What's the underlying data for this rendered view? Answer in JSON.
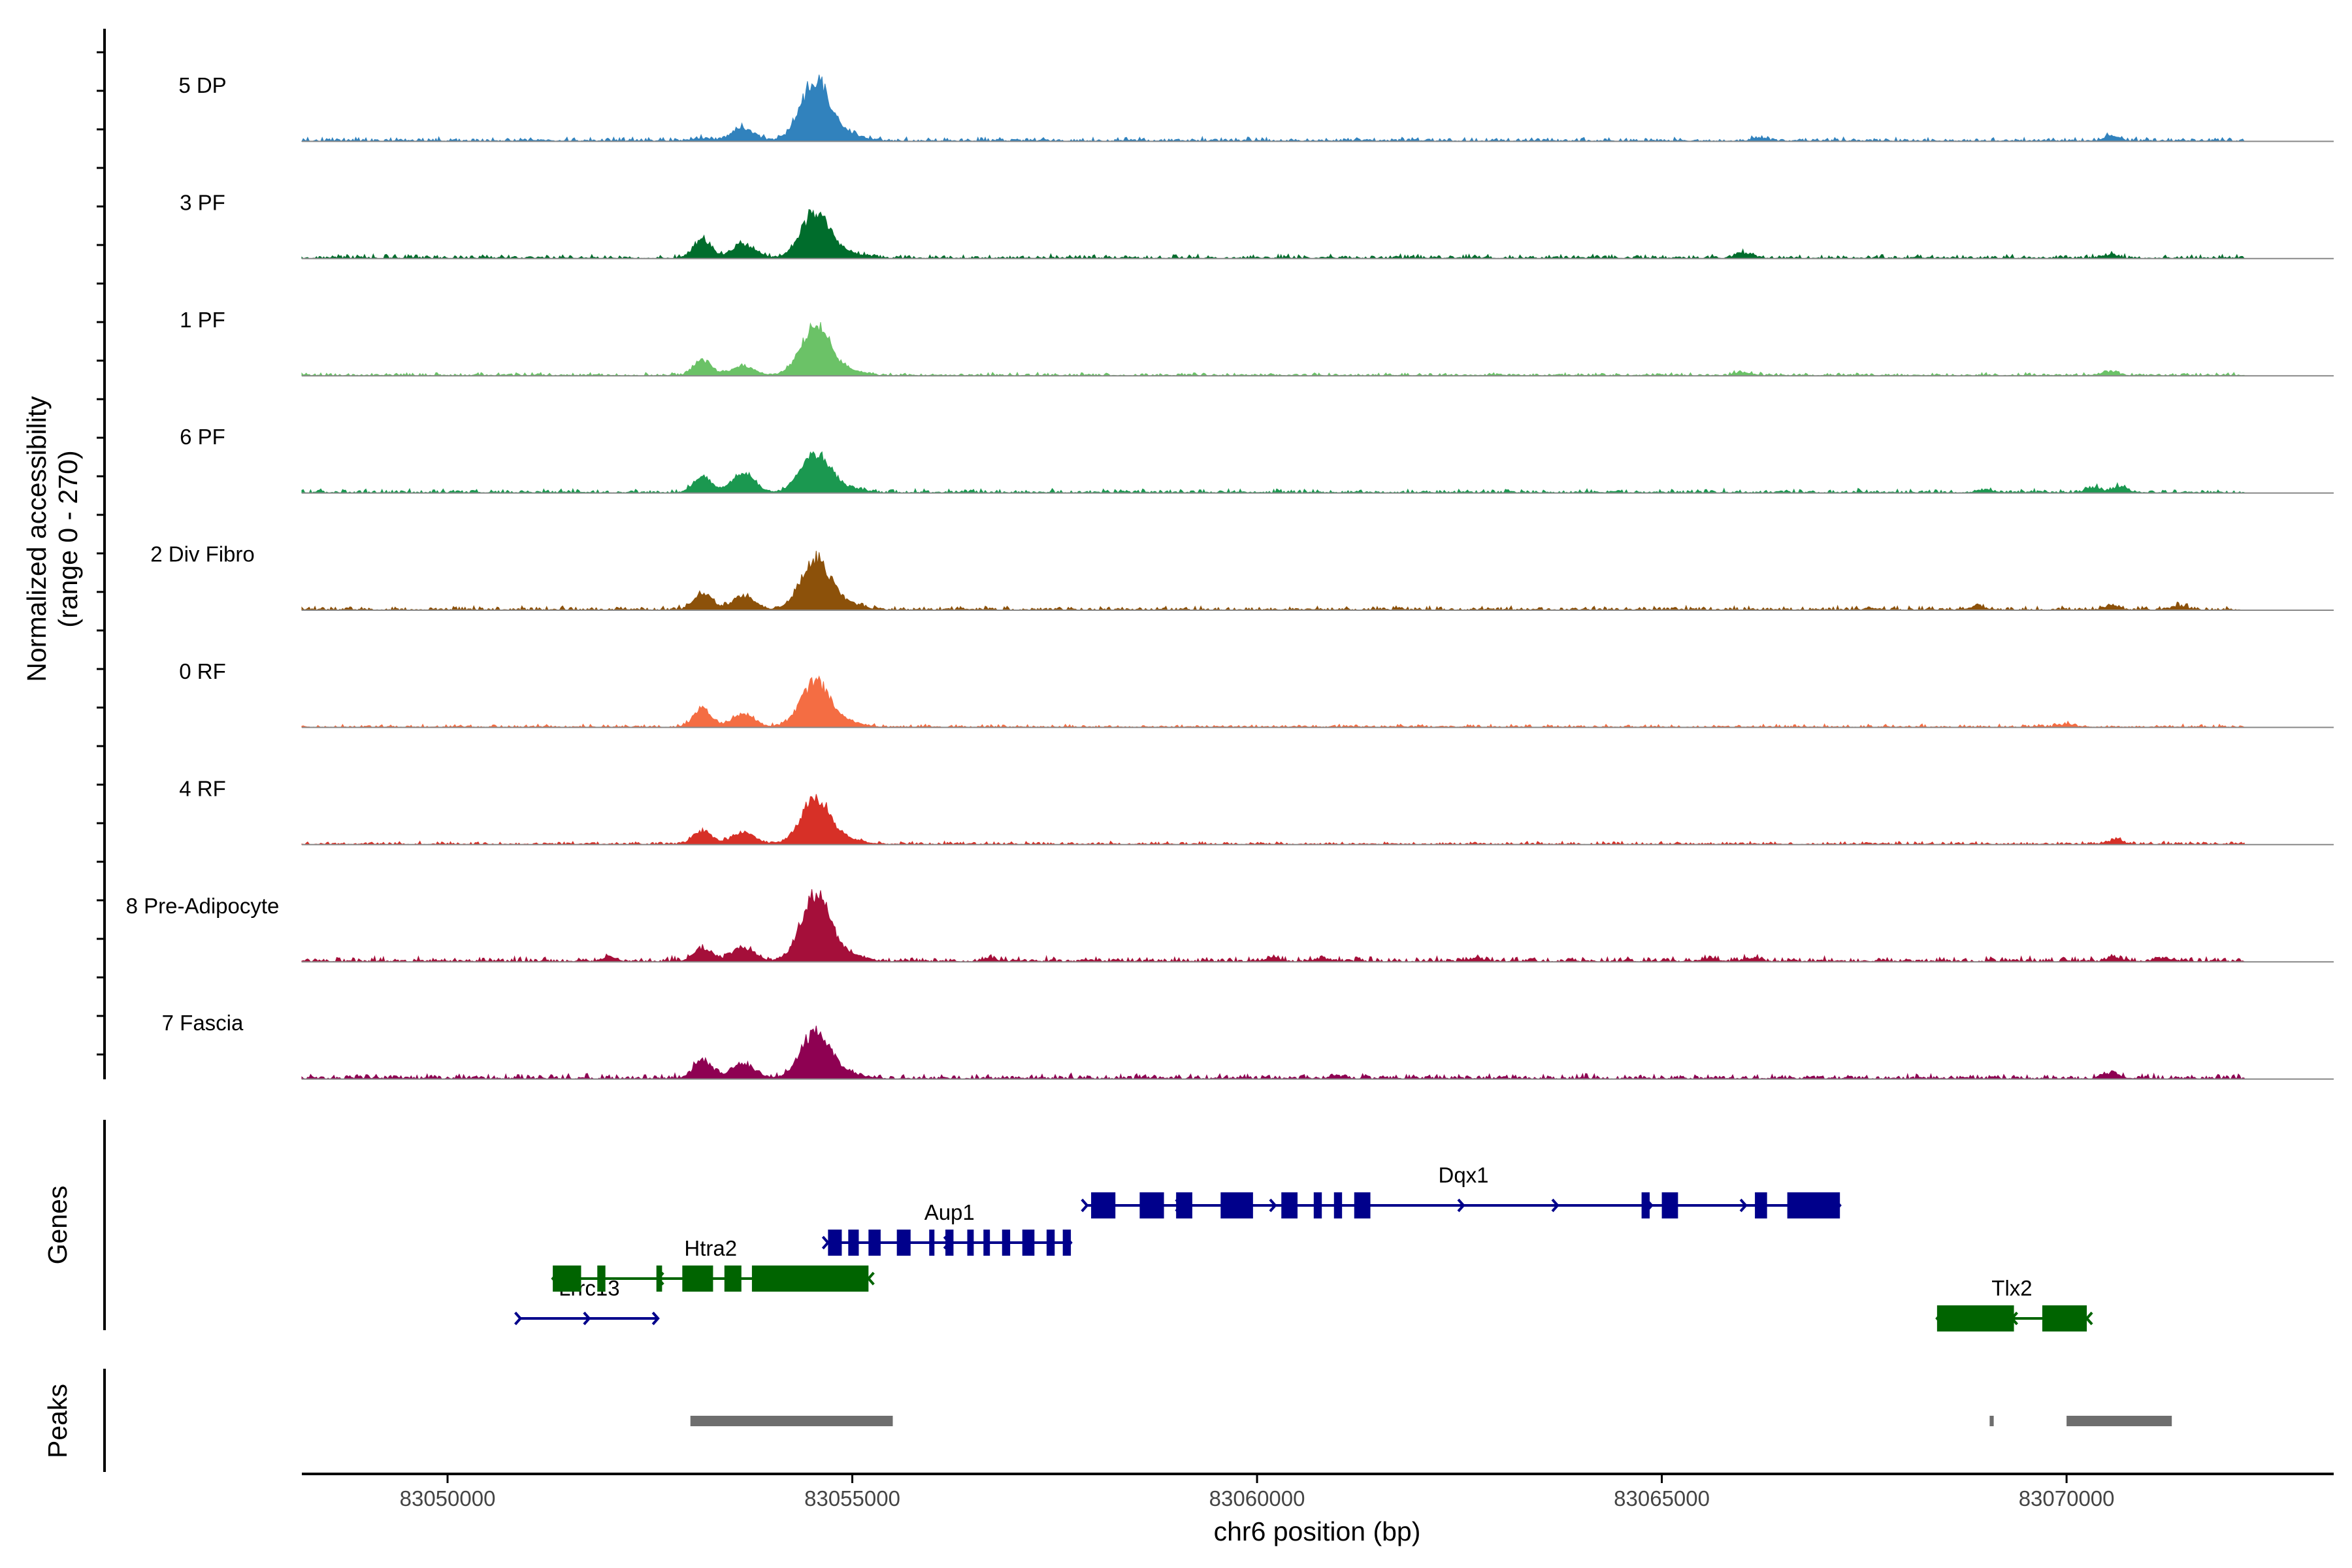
{
  "chart_data": {
    "type": "area",
    "title": "",
    "x_range": [
      83048200,
      83073300
    ],
    "y_range": [
      0,
      270
    ],
    "ylabel_line1": "Normalized accessibility",
    "ylabel_line2": "(range 0 - 270)",
    "xlabel": "chr6 position (bp)",
    "x_ticks": [
      83050000,
      83055000,
      83060000,
      83065000,
      83070000
    ],
    "x_tick_labels": [
      "83050000",
      "83055000",
      "83060000",
      "83065000",
      "83070000"
    ],
    "genes_label": "Genes",
    "peaks_label": "Peaks",
    "peak_profile": [
      {
        "pos": 83053150,
        "width": 110
      },
      {
        "pos": 83053650,
        "width": 140
      },
      {
        "pos": 83054550,
        "width": 180
      }
    ],
    "tracks": [
      {
        "name": "5 DP",
        "color": "#3182bd",
        "heights": [
          8,
          40,
          200
        ],
        "bg": 8,
        "secondary": [
          {
            "pos": 83066200,
            "h": 10
          },
          {
            "pos": 83070550,
            "h": 15
          }
        ]
      },
      {
        "name": "3 PF",
        "color": "#006d2c",
        "heights": [
          60,
          45,
          150
        ],
        "bg": 8,
        "secondary": [
          {
            "pos": 83066000,
            "h": 18
          },
          {
            "pos": 83070500,
            "h": 10
          }
        ]
      },
      {
        "name": "1 PF",
        "color": "#6bc267",
        "heights": [
          50,
          30,
          160
        ],
        "bg": 6,
        "secondary": [
          {
            "pos": 83066000,
            "h": 12
          },
          {
            "pos": 83070550,
            "h": 15
          }
        ]
      },
      {
        "name": "6 PF",
        "color": "#1b9850",
        "heights": [
          50,
          60,
          130
        ],
        "bg": 8,
        "secondary": [
          {
            "pos": 83069000,
            "h": 10
          },
          {
            "pos": 83070350,
            "h": 15
          },
          {
            "pos": 83070650,
            "h": 20
          }
        ]
      },
      {
        "name": "2 Div Fibro",
        "color": "#8c510a",
        "heights": [
          55,
          45,
          170
        ],
        "bg": 8,
        "secondary": [
          {
            "pos": 83068900,
            "h": 12
          },
          {
            "pos": 83070550,
            "h": 15
          },
          {
            "pos": 83071400,
            "h": 12
          }
        ]
      },
      {
        "name": "0 RF",
        "color": "#f46d43",
        "heights": [
          60,
          40,
          150
        ],
        "bg": 6,
        "secondary": [
          {
            "pos": 83070000,
            "h": 10
          }
        ]
      },
      {
        "name": "4 RF",
        "color": "#d73027",
        "heights": [
          45,
          40,
          150
        ],
        "bg": 6,
        "secondary": [
          {
            "pos": 83070600,
            "h": 15
          }
        ]
      },
      {
        "name": "8 Pre-Adipocyte",
        "color": "#a50f3a",
        "heights": [
          40,
          45,
          220
        ],
        "bg": 10,
        "secondary": [
          {
            "pos": 83052000,
            "h": 12
          },
          {
            "pos": 83056700,
            "h": 10
          },
          {
            "pos": 83060200,
            "h": 10
          },
          {
            "pos": 83060800,
            "h": 10
          },
          {
            "pos": 83062700,
            "h": 10
          },
          {
            "pos": 83065600,
            "h": 10
          },
          {
            "pos": 83066100,
            "h": 10
          },
          {
            "pos": 83070600,
            "h": 15
          },
          {
            "pos": 83071200,
            "h": 12
          }
        ]
      },
      {
        "name": "7 Fascia",
        "color": "#8e0152",
        "heights": [
          60,
          50,
          150
        ],
        "bg": 10,
        "secondary": [
          {
            "pos": 83061000,
            "h": 10
          },
          {
            "pos": 83070550,
            "h": 20
          }
        ]
      }
    ],
    "genes": [
      {
        "name": "Lrrc13",
        "label": "Lrrc13",
        "strand": "+",
        "color": "#00008b",
        "start": 83050900,
        "end": 83052600,
        "row": 3,
        "exons": []
      },
      {
        "name": "Htra2",
        "label": "Htra2",
        "strand": "-",
        "color": "#006400",
        "start": 83051300,
        "end": 83055200,
        "row": 2,
        "exons": [
          [
            83051300,
            83051650
          ],
          [
            83051850,
            83051950
          ],
          [
            83052580,
            83052650
          ],
          [
            83052900,
            83053280
          ],
          [
            83053420,
            83053630
          ],
          [
            83053760,
            83055200
          ]
        ]
      },
      {
        "name": "Aup1",
        "label": "Aup1",
        "strand": "+",
        "color": "#00008b",
        "start": 83054700,
        "end": 83057700,
        "row": 1,
        "exons": [
          [
            83054700,
            83054870
          ],
          [
            83054950,
            83055080
          ],
          [
            83055200,
            83055350
          ],
          [
            83055550,
            83055720
          ],
          [
            83055950,
            83056010
          ],
          [
            83056150,
            83056250
          ],
          [
            83056420,
            83056500
          ],
          [
            83056620,
            83056700
          ],
          [
            83056850,
            83056950
          ],
          [
            83057100,
            83057250
          ],
          [
            83057400,
            83057500
          ],
          [
            83057600,
            83057700
          ]
        ]
      },
      {
        "name": "Dqx1",
        "label": "Dqx1",
        "strand": "+",
        "color": "#00008b",
        "start": 83057900,
        "end": 83067200,
        "row": 0,
        "exons": [
          [
            83057950,
            83058250
          ],
          [
            83058550,
            83058850
          ],
          [
            83059000,
            83059200
          ],
          [
            83059550,
            83059950
          ],
          [
            83060300,
            83060500
          ],
          [
            83060700,
            83060800
          ],
          [
            83060950,
            83061050
          ],
          [
            83061200,
            83061400
          ],
          [
            83064750,
            83064850
          ],
          [
            83065000,
            83065200
          ],
          [
            83066150,
            83066300
          ],
          [
            83066550,
            83067200
          ]
        ]
      },
      {
        "name": "Tlx2",
        "label": "Tlx2",
        "strand": "-",
        "color": "#006400",
        "start": 83068400,
        "end": 83070250,
        "row": 3,
        "exons": [
          [
            83068400,
            83069350
          ],
          [
            83069700,
            83070250
          ]
        ]
      }
    ],
    "peaks": [
      [
        83053000,
        83055500
      ],
      [
        83069050,
        83069100
      ],
      [
        83070000,
        83071300
      ]
    ]
  }
}
